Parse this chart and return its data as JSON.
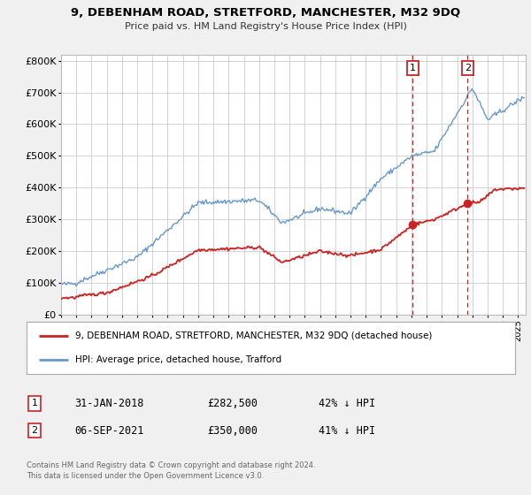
{
  "title": "9, DEBENHAM ROAD, STRETFORD, MANCHESTER, M32 9DQ",
  "subtitle": "Price paid vs. HM Land Registry's House Price Index (HPI)",
  "legend_line1": "9, DEBENHAM ROAD, STRETFORD, MANCHESTER, M32 9DQ (detached house)",
  "legend_line2": "HPI: Average price, detached house, Trafford",
  "marker1_date": "31-JAN-2018",
  "marker1_price": 282500,
  "marker1_hpi": "42% ↓ HPI",
  "marker2_date": "06-SEP-2021",
  "marker2_price": 350000,
  "marker2_hpi": "41% ↓ HPI",
  "marker1_year": 2018.08,
  "marker2_year": 2021.68,
  "footnote1": "Contains HM Land Registry data © Crown copyright and database right 2024.",
  "footnote2": "This data is licensed under the Open Government Licence v3.0.",
  "hpi_color": "#6699cc",
  "property_color": "#cc2222",
  "background_color": "#f0f0f0",
  "plot_bg_color": "#ffffff",
  "grid_color": "#cccccc",
  "ylim": [
    0,
    820000
  ],
  "xlim_start": 1995,
  "xlim_end": 2025.5
}
